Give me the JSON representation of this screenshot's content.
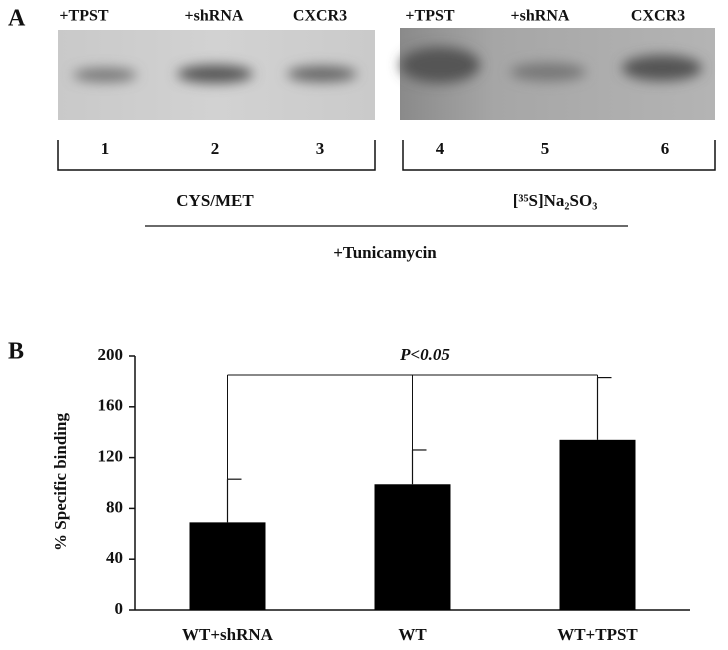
{
  "panel_a": {
    "label": "A",
    "lanes": [
      "+TPST",
      "+shRNA",
      "CXCR3",
      "+TPST",
      "+shRNA",
      "CXCR3"
    ],
    "lane_numbers": [
      "1",
      "2",
      "3",
      "4",
      "5",
      "6"
    ],
    "groups": [
      "CYS/MET",
      "[³⁵S]Na₂SO₃"
    ],
    "treatment": "+Tunicamycin"
  },
  "chart_data": {
    "type": "bar",
    "panel_label": "B",
    "ylabel": "% Specific binding",
    "categories": [
      "WT+shRNA",
      "WT",
      "WT+TPST"
    ],
    "values": [
      69,
      99,
      134
    ],
    "errors": [
      34,
      27,
      49
    ],
    "color": "#000000",
    "ylim": [
      0,
      200
    ],
    "yticks": [
      0,
      40,
      80,
      120,
      160,
      200
    ],
    "annotation": "P<0.05"
  }
}
